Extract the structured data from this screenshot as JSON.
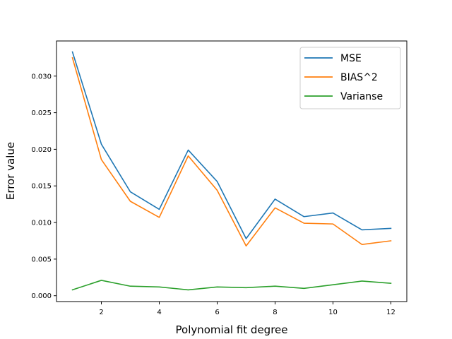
{
  "chart_data": {
    "type": "line",
    "title": "",
    "xlabel": "Polynomial fit degree",
    "ylabel": "Error value",
    "x": [
      1,
      2,
      3,
      4,
      5,
      6,
      7,
      8,
      9,
      10,
      11,
      12
    ],
    "xlim": [
      0.45,
      12.55
    ],
    "ylim": [
      -0.0008,
      0.0348
    ],
    "xticks": [
      2,
      4,
      6,
      8,
      10,
      12
    ],
    "yticks": [
      0.0,
      0.005,
      0.01,
      0.015,
      0.02,
      0.025,
      0.03
    ],
    "ytick_labels": [
      "0.000",
      "0.005",
      "0.010",
      "0.015",
      "0.020",
      "0.025",
      "0.030"
    ],
    "grid": false,
    "legend_position": "top-right",
    "series": [
      {
        "name": "MSE",
        "color": "#1f77b4",
        "values": [
          0.0333,
          0.0207,
          0.0142,
          0.0118,
          0.0199,
          0.0156,
          0.0078,
          0.0132,
          0.0108,
          0.0113,
          0.009,
          0.0092
        ]
      },
      {
        "name": "BIAS^2",
        "color": "#ff7f0e",
        "values": [
          0.0325,
          0.0186,
          0.0129,
          0.0107,
          0.0191,
          0.0144,
          0.0068,
          0.012,
          0.0099,
          0.0098,
          0.007,
          0.0075
        ]
      },
      {
        "name": "Varianse",
        "color": "#2ca02c",
        "values": [
          0.0008,
          0.0021,
          0.0013,
          0.0012,
          0.0008,
          0.0012,
          0.0011,
          0.0013,
          0.001,
          0.0015,
          0.002,
          0.0017
        ]
      }
    ]
  }
}
